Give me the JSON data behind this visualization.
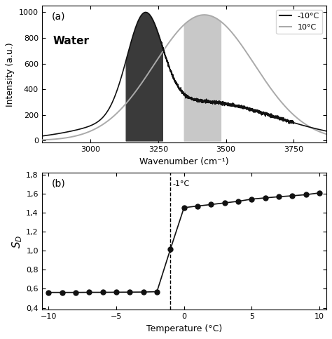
{
  "panel_a": {
    "title": "(a)",
    "xlabel": "Wavenumber (cm⁻¹)",
    "ylabel": "Intensity (a.u.)",
    "xlim": [
      2820,
      3870
    ],
    "ylim": [
      -15,
      1050
    ],
    "xticks": [
      3000,
      3250,
      3500,
      3750
    ],
    "yticks": [
      0,
      200,
      400,
      600,
      800,
      1000
    ],
    "legend_labels": [
      "-10°C",
      "10°C"
    ],
    "legend_colors": [
      "#111111",
      "#aaaaaa"
    ],
    "water_label": "Water",
    "dark_shade": [
      3130,
      3265
    ],
    "light_shade": [
      3345,
      3480
    ],
    "dark_shade_color": "#3a3a3a",
    "light_shade_color": "#c8c8c8"
  },
  "panel_b": {
    "title": "(b)",
    "xlabel": "Temperature (°C)",
    "ylabel": "S_D",
    "xlim": [
      -10.5,
      10.5
    ],
    "ylim": [
      0.38,
      1.82
    ],
    "xticks": [
      -10,
      -5,
      0,
      5,
      10
    ],
    "yticks": [
      0.4,
      0.6,
      0.8,
      1.0,
      1.2,
      1.4,
      1.6,
      1.8
    ],
    "vline_x": -1,
    "vline_label": "-1°C",
    "temperatures": [
      -10,
      -9,
      -8,
      -7,
      -6,
      -5,
      -4,
      -3,
      -2,
      -1,
      0,
      1,
      2,
      3,
      4,
      5,
      6,
      7,
      8,
      9,
      10
    ],
    "sd_values": [
      0.562,
      0.562,
      0.562,
      0.563,
      0.563,
      0.564,
      0.565,
      0.566,
      0.57,
      1.02,
      1.455,
      1.472,
      1.488,
      1.505,
      1.522,
      1.545,
      1.558,
      1.57,
      1.58,
      1.592,
      1.61
    ],
    "line_color": "#111111",
    "marker": "o",
    "markersize": 5
  }
}
